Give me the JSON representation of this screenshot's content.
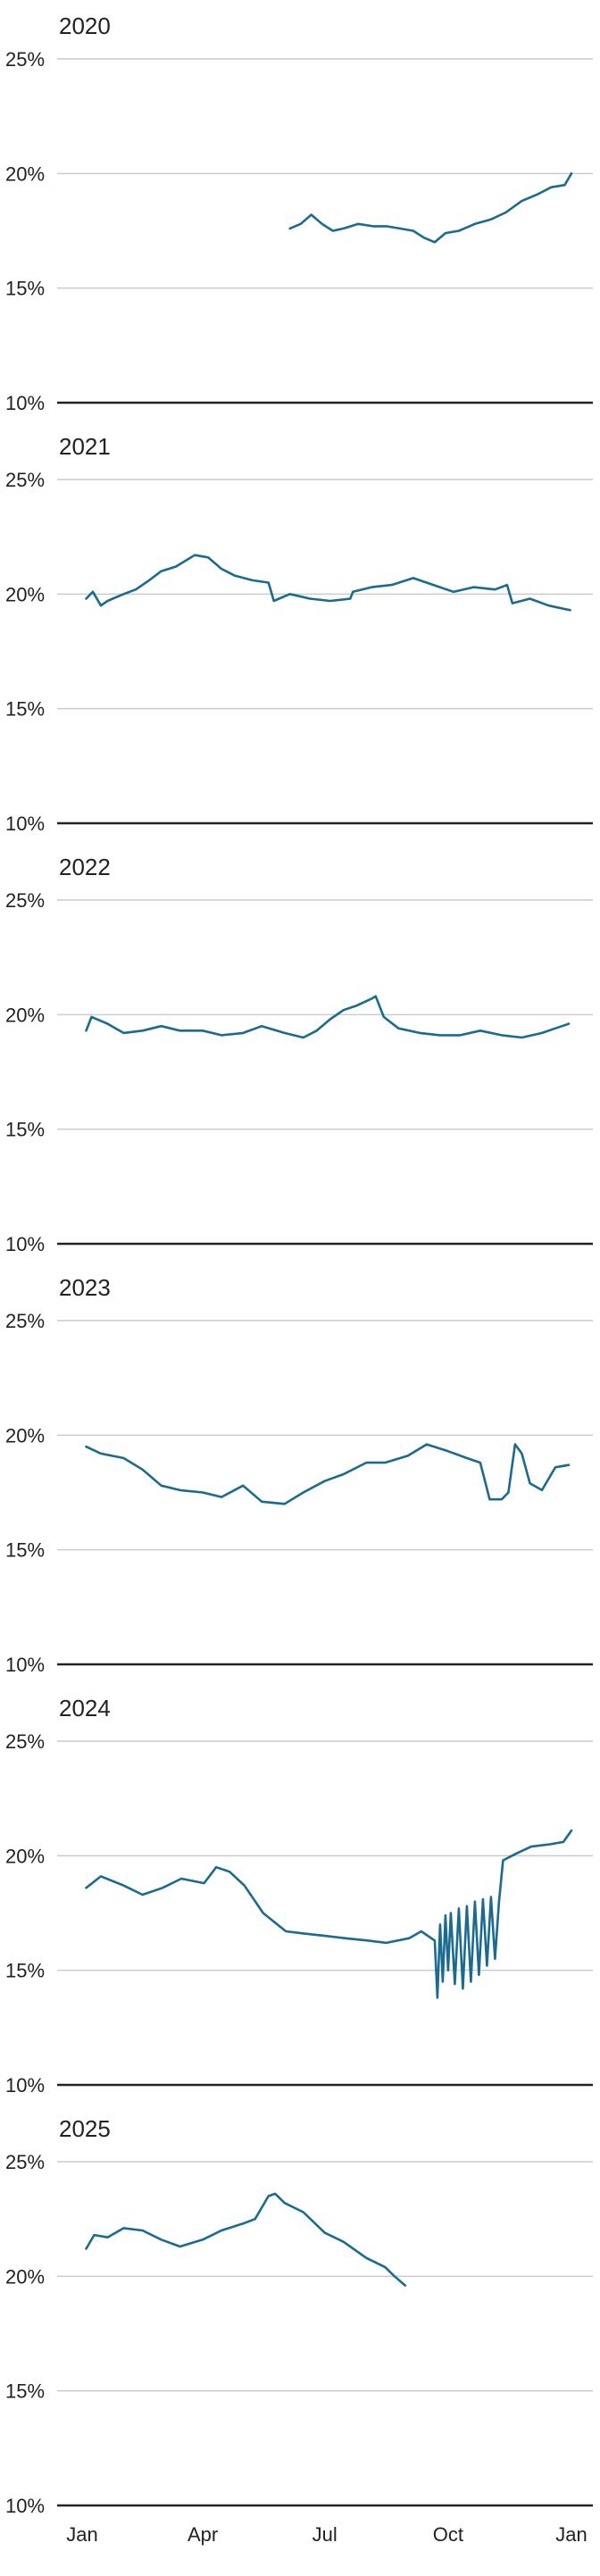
{
  "colors": {
    "line": "#1a6b8f",
    "grid": "#cccccc",
    "baseline": "#222222",
    "text": "#222222"
  },
  "x_axis": {
    "tick_labels": [
      "Jan",
      "Apr",
      "Jul",
      "Oct",
      "Jan"
    ],
    "tick_day_of_year": [
      0,
      90,
      181,
      273,
      365
    ]
  },
  "chart_data": [
    {
      "type": "line",
      "title": "2020",
      "ylim": [
        10,
        25
      ],
      "yticks": [
        "25%",
        "20%",
        "15%",
        "10%"
      ],
      "grid": true,
      "series": [
        {
          "x": [
            "2020-06-04",
            "2020-06-12",
            "2020-06-20",
            "2020-06-28",
            "2020-07-06",
            "2020-07-14",
            "2020-07-25",
            "2020-08-05",
            "2020-08-15",
            "2020-08-25",
            "2020-09-04",
            "2020-09-12",
            "2020-09-20",
            "2020-09-28",
            "2020-10-08",
            "2020-10-20",
            "2020-11-01",
            "2020-11-12",
            "2020-11-24",
            "2020-12-06",
            "2020-12-16",
            "2020-12-26",
            "2020-12-31"
          ],
          "values": [
            17.6,
            17.8,
            18.2,
            17.8,
            17.5,
            17.6,
            17.8,
            17.7,
            17.7,
            17.6,
            17.5,
            17.2,
            17.0,
            17.4,
            17.5,
            17.8,
            18.0,
            18.3,
            18.8,
            19.1,
            19.4,
            19.5,
            20.0
          ]
        }
      ]
    },
    {
      "type": "line",
      "title": "2021",
      "ylim": [
        10,
        25
      ],
      "yticks": [
        "25%",
        "20%",
        "15%",
        "10%"
      ],
      "grid": true,
      "series": [
        {
          "x": [
            "2021-01-04",
            "2021-01-09",
            "2021-01-15",
            "2021-01-20",
            "2021-02-01",
            "2021-02-10",
            "2021-02-20",
            "2021-03-01",
            "2021-03-12",
            "2021-03-26",
            "2021-04-05",
            "2021-04-15",
            "2021-04-25",
            "2021-05-08",
            "2021-05-20",
            "2021-05-24",
            "2021-06-05",
            "2021-06-20",
            "2021-07-05",
            "2021-07-20",
            "2021-07-22",
            "2021-08-05",
            "2021-08-20",
            "2021-09-05",
            "2021-09-20",
            "2021-10-05",
            "2021-10-20",
            "2021-11-05",
            "2021-11-14",
            "2021-11-18",
            "2021-12-01",
            "2021-12-15",
            "2021-12-31"
          ],
          "values": [
            19.8,
            20.1,
            19.5,
            19.7,
            20.0,
            20.2,
            20.6,
            21.0,
            21.2,
            21.7,
            21.6,
            21.1,
            20.8,
            20.6,
            20.5,
            19.7,
            20.0,
            19.8,
            19.7,
            19.8,
            20.1,
            20.3,
            20.4,
            20.7,
            20.4,
            20.1,
            20.3,
            20.2,
            20.4,
            19.6,
            19.8,
            19.5,
            19.3
          ]
        }
      ]
    },
    {
      "type": "line",
      "title": "2022",
      "ylim": [
        10,
        25
      ],
      "yticks": [
        "25%",
        "20%",
        "15%",
        "10%"
      ],
      "grid": true,
      "series": [
        {
          "x": [
            "2022-01-04",
            "2022-01-08",
            "2022-01-20",
            "2022-02-01",
            "2022-02-15",
            "2022-03-01",
            "2022-03-15",
            "2022-04-01",
            "2022-04-15",
            "2022-05-01",
            "2022-05-15",
            "2022-06-01",
            "2022-06-15",
            "2022-06-25",
            "2022-07-05",
            "2022-07-15",
            "2022-07-25",
            "2022-08-05",
            "2022-08-08",
            "2022-08-14",
            "2022-08-25",
            "2022-09-10",
            "2022-09-25",
            "2022-10-10",
            "2022-10-25",
            "2022-11-10",
            "2022-11-25",
            "2022-12-10",
            "2022-12-20",
            "2022-12-30"
          ],
          "values": [
            19.3,
            19.9,
            19.6,
            19.2,
            19.3,
            19.5,
            19.3,
            19.3,
            19.1,
            19.2,
            19.5,
            19.2,
            19.0,
            19.3,
            19.8,
            20.2,
            20.4,
            20.7,
            20.8,
            19.9,
            19.4,
            19.2,
            19.1,
            19.1,
            19.3,
            19.1,
            19.0,
            19.2,
            19.4,
            19.6
          ]
        }
      ]
    },
    {
      "type": "line",
      "title": "2023",
      "ylim": [
        10,
        25
      ],
      "yticks": [
        "25%",
        "20%",
        "15%",
        "10%"
      ],
      "grid": true,
      "series": [
        {
          "x": [
            "2023-01-04",
            "2023-01-15",
            "2023-02-01",
            "2023-02-15",
            "2023-03-01",
            "2023-03-15",
            "2023-04-01",
            "2023-04-15",
            "2023-05-01",
            "2023-05-15",
            "2023-06-01",
            "2023-06-15",
            "2023-07-01",
            "2023-07-15",
            "2023-08-01",
            "2023-08-15",
            "2023-09-01",
            "2023-09-15",
            "2023-10-01",
            "2023-10-15",
            "2023-10-25",
            "2023-11-01",
            "2023-11-10",
            "2023-11-15",
            "2023-11-20",
            "2023-11-25",
            "2023-12-01",
            "2023-12-10",
            "2023-12-20",
            "2023-12-30"
          ],
          "values": [
            19.5,
            19.2,
            19.0,
            18.5,
            17.8,
            17.6,
            17.5,
            17.3,
            17.8,
            17.1,
            17.0,
            17.5,
            18.0,
            18.3,
            18.8,
            18.8,
            19.1,
            19.6,
            19.3,
            19.0,
            18.8,
            17.2,
            17.2,
            17.5,
            19.6,
            19.2,
            17.9,
            17.6,
            18.6,
            18.7
          ]
        }
      ]
    },
    {
      "type": "line",
      "title": "2024",
      "ylim": [
        10,
        25
      ],
      "yticks": [
        "25%",
        "20%",
        "15%",
        "10%"
      ],
      "grid": true,
      "series": [
        {
          "x": [
            "2024-01-04",
            "2024-01-15",
            "2024-02-01",
            "2024-02-15",
            "2024-03-01",
            "2024-03-15",
            "2024-04-01",
            "2024-04-10",
            "2024-04-20",
            "2024-05-01",
            "2024-05-15",
            "2024-06-01",
            "2024-06-15",
            "2024-07-01",
            "2024-07-15",
            "2024-08-01",
            "2024-08-15",
            "2024-09-01",
            "2024-09-10",
            "2024-09-20",
            "2024-09-22",
            "2024-09-24",
            "2024-09-26",
            "2024-09-28",
            "2024-09-30",
            "2024-10-02",
            "2024-10-05",
            "2024-10-08",
            "2024-10-11",
            "2024-10-14",
            "2024-10-17",
            "2024-10-20",
            "2024-10-23",
            "2024-10-26",
            "2024-10-29",
            "2024-11-01",
            "2024-11-04",
            "2024-11-07",
            "2024-11-10",
            "2024-11-20",
            "2024-12-01",
            "2024-12-15",
            "2024-12-25",
            "2024-12-31"
          ],
          "values": [
            18.6,
            19.1,
            18.7,
            18.3,
            18.6,
            19.0,
            18.8,
            19.5,
            19.3,
            18.7,
            17.5,
            16.7,
            16.6,
            16.5,
            16.4,
            16.3,
            16.2,
            16.4,
            16.7,
            16.3,
            13.8,
            17.0,
            14.5,
            17.4,
            15.0,
            17.5,
            14.4,
            17.7,
            14.2,
            17.8,
            14.5,
            18.0,
            14.8,
            18.1,
            15.2,
            18.2,
            15.5,
            18.0,
            19.8,
            20.1,
            20.4,
            20.5,
            20.6,
            21.1
          ]
        }
      ]
    },
    {
      "type": "line",
      "title": "2025",
      "ylim": [
        10,
        25
      ],
      "yticks": [
        "25%",
        "20%",
        "15%",
        "10%"
      ],
      "grid": true,
      "series": [
        {
          "x": [
            "2025-01-04",
            "2025-01-10",
            "2025-01-20",
            "2025-02-01",
            "2025-02-15",
            "2025-03-01",
            "2025-03-15",
            "2025-04-01",
            "2025-04-15",
            "2025-05-01",
            "2025-05-10",
            "2025-05-20",
            "2025-05-25",
            "2025-06-01",
            "2025-06-15",
            "2025-07-01",
            "2025-07-15",
            "2025-08-01",
            "2025-08-15",
            "2025-08-22",
            "2025-08-30"
          ],
          "values": [
            21.2,
            21.8,
            21.7,
            22.1,
            22.0,
            21.6,
            21.3,
            21.6,
            22.0,
            22.3,
            22.5,
            23.5,
            23.6,
            23.2,
            22.8,
            21.9,
            21.5,
            20.8,
            20.4,
            20.0,
            19.6
          ]
        }
      ]
    }
  ]
}
